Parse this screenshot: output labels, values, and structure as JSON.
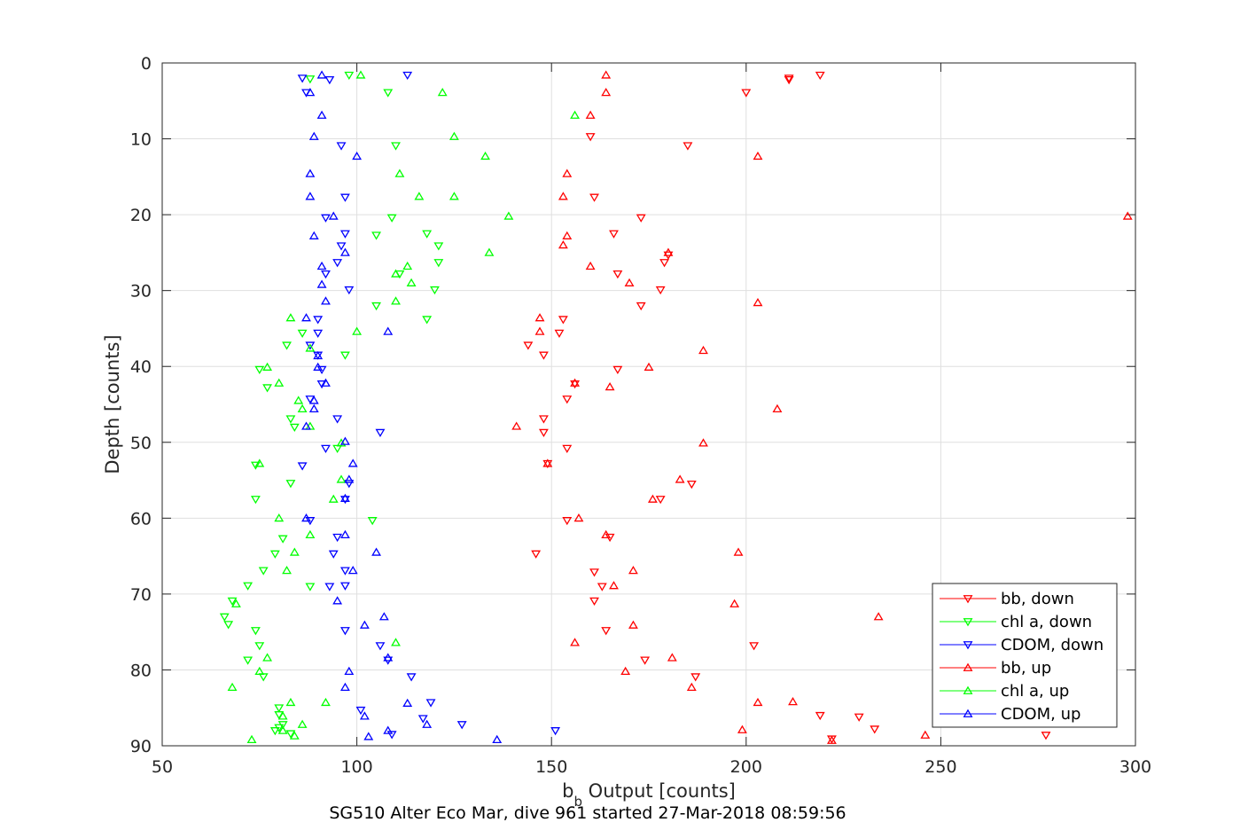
{
  "chart_data": {
    "type": "scatter",
    "title": "",
    "caption": "SG510 Alter Eco Mar, dive 961 started 27-Mar-2018 08:59:56",
    "xlabel": {
      "main": "b",
      "sub": "b",
      "rest": " Output [counts]"
    },
    "ylabel": "Depth [counts]",
    "xlim": [
      50,
      300
    ],
    "ylim": [
      0,
      90
    ],
    "y_reversed": true,
    "grid": true,
    "legend_position": "bottom-right",
    "xticks": [
      "50",
      "100",
      "150",
      "200",
      "250",
      "300"
    ],
    "yticks": [
      "0",
      "10",
      "20",
      "30",
      "40",
      "50",
      "60",
      "70",
      "80",
      "90"
    ],
    "series": [
      {
        "name": "bb, down",
        "color": "#ff0000",
        "marker": "triangle-down",
        "points": [
          [
            219,
            1.6
          ],
          [
            211,
            2
          ],
          [
            211,
            2.2
          ],
          [
            200,
            3.9
          ],
          [
            185,
            10.9
          ],
          [
            160,
            9.7
          ],
          [
            161,
            17.7
          ],
          [
            173,
            20.4
          ],
          [
            166,
            22.5
          ],
          [
            180,
            25.3
          ],
          [
            179,
            26.3
          ],
          [
            167,
            27.8
          ],
          [
            178,
            29.9
          ],
          [
            173,
            32
          ],
          [
            153,
            33.8
          ],
          [
            152,
            35.6
          ],
          [
            144,
            37.2
          ],
          [
            148,
            38.5
          ],
          [
            167,
            40.4
          ],
          [
            156,
            42.3
          ],
          [
            154,
            44.3
          ],
          [
            148,
            46.9
          ],
          [
            148,
            48.7
          ],
          [
            154,
            50.8
          ],
          [
            149,
            52.8
          ],
          [
            186,
            55.5
          ],
          [
            178,
            57.5
          ],
          [
            154,
            60.3
          ],
          [
            165,
            62.5
          ],
          [
            146,
            64.7
          ],
          [
            161,
            67.1
          ],
          [
            163,
            69
          ],
          [
            161,
            70.9
          ],
          [
            164,
            74.8
          ],
          [
            202,
            76.8
          ],
          [
            174,
            78.7
          ],
          [
            187,
            80.9
          ],
          [
            219,
            86
          ],
          [
            229,
            86.2
          ],
          [
            233,
            87.8
          ],
          [
            222,
            89.1
          ],
          [
            277,
            88.6
          ]
        ]
      },
      {
        "name": "chl a, down",
        "color": "#00ff00",
        "marker": "triangle-down",
        "points": [
          [
            88,
            2.1
          ],
          [
            98,
            1.6
          ],
          [
            108,
            3.9
          ],
          [
            110,
            10.9
          ],
          [
            109,
            20.4
          ],
          [
            118,
            22.5
          ],
          [
            121,
            24.1
          ],
          [
            105,
            22.7
          ],
          [
            121,
            26.3
          ],
          [
            111,
            27.8
          ],
          [
            120,
            29.9
          ],
          [
            105,
            32
          ],
          [
            118,
            33.8
          ],
          [
            86,
            35.6
          ],
          [
            82,
            37.2
          ],
          [
            97,
            38.5
          ],
          [
            75,
            40.4
          ],
          [
            77,
            42.8
          ],
          [
            83,
            46.9
          ],
          [
            84,
            48
          ],
          [
            95,
            50.8
          ],
          [
            74,
            53
          ],
          [
            83,
            55.4
          ],
          [
            74,
            57.5
          ],
          [
            104,
            60.3
          ],
          [
            81,
            62.7
          ],
          [
            79,
            64.7
          ],
          [
            76,
            66.9
          ],
          [
            72,
            68.9
          ],
          [
            88,
            69
          ],
          [
            68,
            70.9
          ],
          [
            66,
            73
          ],
          [
            67,
            74
          ],
          [
            74,
            74.8
          ],
          [
            75,
            76.8
          ],
          [
            72,
            78.7
          ],
          [
            76,
            80.9
          ],
          [
            80,
            85
          ],
          [
            80,
            85.9
          ],
          [
            81,
            87.2
          ],
          [
            79,
            88
          ],
          [
            83,
            88.4
          ],
          [
            80,
            87.6
          ]
        ]
      },
      {
        "name": "CDOM, down",
        "color": "#0000ff",
        "marker": "triangle-down",
        "points": [
          [
            86,
            2
          ],
          [
            93,
            2.2
          ],
          [
            113,
            1.6
          ],
          [
            87,
            3.9
          ],
          [
            96,
            10.9
          ],
          [
            97,
            17.7
          ],
          [
            92,
            20.4
          ],
          [
            97,
            22.5
          ],
          [
            96,
            24.1
          ],
          [
            95,
            26.3
          ],
          [
            92,
            27.8
          ],
          [
            98,
            29.9
          ],
          [
            90,
            33.8
          ],
          [
            90,
            35.6
          ],
          [
            88,
            37.2
          ],
          [
            90,
            38.5
          ],
          [
            91,
            40.4
          ],
          [
            91,
            42.3
          ],
          [
            88,
            44.3
          ],
          [
            95,
            46.9
          ],
          [
            106,
            48.7
          ],
          [
            92,
            50.8
          ],
          [
            86,
            53.1
          ],
          [
            98,
            55.4
          ],
          [
            97,
            57.5
          ],
          [
            88,
            60.3
          ],
          [
            95,
            62.5
          ],
          [
            94,
            64.7
          ],
          [
            97,
            66.9
          ],
          [
            97,
            68.9
          ],
          [
            93,
            69
          ],
          [
            97,
            74.8
          ],
          [
            106,
            76.8
          ],
          [
            108,
            78.7
          ],
          [
            114,
            80.9
          ],
          [
            119,
            84.3
          ],
          [
            101,
            85.3
          ],
          [
            117,
            86.4
          ],
          [
            127,
            87.2
          ],
          [
            151,
            88
          ],
          [
            109,
            88.5
          ]
        ]
      },
      {
        "name": "bb, up",
        "color": "#ff0000",
        "marker": "triangle-up",
        "points": [
          [
            164,
            1.6
          ],
          [
            164,
            3.9
          ],
          [
            160,
            6.9
          ],
          [
            203,
            12.3
          ],
          [
            154,
            14.6
          ],
          [
            153,
            17.6
          ],
          [
            298,
            20.2
          ],
          [
            154,
            22.8
          ],
          [
            153,
            24
          ],
          [
            180,
            25
          ],
          [
            160,
            26.8
          ],
          [
            170,
            29
          ],
          [
            203,
            31.6
          ],
          [
            147,
            33.6
          ],
          [
            147,
            35.4
          ],
          [
            189,
            37.9
          ],
          [
            175,
            40.1
          ],
          [
            156,
            42.2
          ],
          [
            165,
            42.7
          ],
          [
            208,
            45.6
          ],
          [
            141,
            47.9
          ],
          [
            189,
            50.1
          ],
          [
            149,
            52.8
          ],
          [
            183,
            54.9
          ],
          [
            176,
            57.5
          ],
          [
            157,
            60
          ],
          [
            164,
            62.2
          ],
          [
            198,
            64.5
          ],
          [
            171,
            66.9
          ],
          [
            166,
            68.9
          ],
          [
            197,
            71.3
          ],
          [
            234,
            73
          ],
          [
            171,
            74.1
          ],
          [
            156,
            76.4
          ],
          [
            181,
            78.4
          ],
          [
            169,
            80.2
          ],
          [
            186,
            82.3
          ],
          [
            212,
            84.2
          ],
          [
            203,
            84.3
          ],
          [
            199,
            87.9
          ],
          [
            246,
            88.6
          ],
          [
            222,
            89.3
          ]
        ]
      },
      {
        "name": "chl a, up",
        "color": "#00ff00",
        "marker": "triangle-up",
        "points": [
          [
            101,
            1.6
          ],
          [
            122,
            3.9
          ],
          [
            156,
            6.9
          ],
          [
            125,
            9.7
          ],
          [
            133,
            12.3
          ],
          [
            111,
            14.6
          ],
          [
            116,
            17.6
          ],
          [
            125,
            17.6
          ],
          [
            139,
            20.2
          ],
          [
            134,
            25
          ],
          [
            113,
            26.8
          ],
          [
            110,
            27.8
          ],
          [
            114,
            29
          ],
          [
            110,
            31.4
          ],
          [
            83,
            33.6
          ],
          [
            100,
            35.4
          ],
          [
            88,
            37.6
          ],
          [
            77,
            40.1
          ],
          [
            80,
            42.2
          ],
          [
            85,
            44.5
          ],
          [
            86,
            45.6
          ],
          [
            88,
            47.9
          ],
          [
            96,
            50.1
          ],
          [
            75,
            52.8
          ],
          [
            96,
            54.9
          ],
          [
            94,
            57.5
          ],
          [
            80,
            60
          ],
          [
            88,
            62.2
          ],
          [
            84,
            64.5
          ],
          [
            82,
            66.9
          ],
          [
            69,
            71.3
          ],
          [
            110,
            76.4
          ],
          [
            77,
            78.4
          ],
          [
            75,
            80.2
          ],
          [
            68,
            82.3
          ],
          [
            83,
            84.3
          ],
          [
            92,
            84.3
          ],
          [
            81,
            86.1
          ],
          [
            86,
            87.2
          ],
          [
            81,
            88
          ],
          [
            73,
            89.2
          ],
          [
            84,
            88.7
          ]
        ]
      },
      {
        "name": "CDOM, up",
        "color": "#0000ff",
        "marker": "triangle-up",
        "points": [
          [
            91,
            1.6
          ],
          [
            88,
            3.9
          ],
          [
            91,
            6.9
          ],
          [
            89,
            9.7
          ],
          [
            100,
            12.3
          ],
          [
            88,
            14.6
          ],
          [
            88,
            17.6
          ],
          [
            94,
            20.2
          ],
          [
            89,
            22.8
          ],
          [
            97,
            25
          ],
          [
            91,
            26.8
          ],
          [
            91,
            29.2
          ],
          [
            92,
            31.4
          ],
          [
            87,
            33.6
          ],
          [
            108,
            35.4
          ],
          [
            90,
            38.6
          ],
          [
            90,
            40.1
          ],
          [
            92,
            42.2
          ],
          [
            89,
            44.5
          ],
          [
            89,
            45.6
          ],
          [
            87,
            47.9
          ],
          [
            97,
            49.9
          ],
          [
            99,
            52.8
          ],
          [
            98,
            54.9
          ],
          [
            97,
            57.4
          ],
          [
            87,
            60
          ],
          [
            97,
            62.2
          ],
          [
            105,
            64.5
          ],
          [
            99,
            66.9
          ],
          [
            95,
            70.9
          ],
          [
            107,
            73
          ],
          [
            102,
            74.1
          ],
          [
            108,
            78.4
          ],
          [
            98,
            80.2
          ],
          [
            97,
            82.3
          ],
          [
            113,
            84.4
          ],
          [
            102,
            86.1
          ],
          [
            118,
            87.2
          ],
          [
            108,
            88
          ],
          [
            136,
            89.2
          ],
          [
            103,
            88.8
          ]
        ]
      }
    ]
  }
}
